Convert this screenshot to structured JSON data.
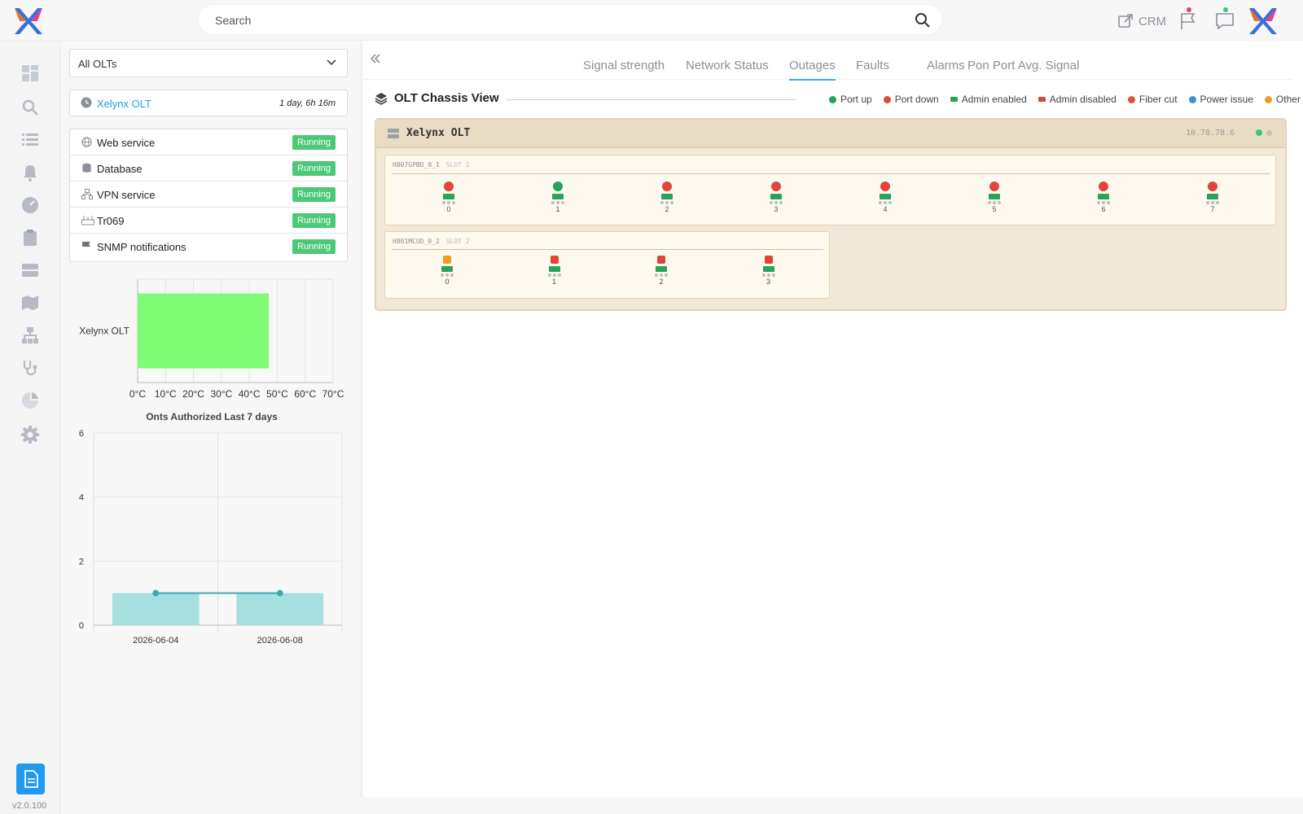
{
  "topbar": {
    "search_placeholder": "Search",
    "crm_label": "CRM"
  },
  "version": "v2.0.100",
  "panel": {
    "olt_select": "All OLTs",
    "olt_card": {
      "name": "Xelynx OLT",
      "uptime": "1 day, 6h 16m"
    },
    "services": [
      {
        "label": "Web service",
        "status": "Running",
        "icon": "globe-icon"
      },
      {
        "label": "Database",
        "status": "Running",
        "icon": "database-icon"
      },
      {
        "label": "VPN service",
        "status": "Running",
        "icon": "network-icon"
      },
      {
        "label": "Tr069",
        "status": "Running",
        "icon": "router-icon"
      },
      {
        "label": "SNMP notifications",
        "status": "Running",
        "icon": "flag-icon"
      }
    ]
  },
  "tabs": [
    "Signal strength",
    "Network Status",
    "Outages",
    "Faults",
    "Alarms",
    "Pon Port Avg. Signal"
  ],
  "active_tab": "Outages",
  "chassis_view": {
    "title": "OLT Chassis View",
    "legend": [
      {
        "label": "Port up",
        "color": "#22a35a",
        "shape": "dot"
      },
      {
        "label": "Port down",
        "color": "#e0453a",
        "shape": "dot"
      },
      {
        "label": "Admin enabled",
        "color": "#27a35a",
        "shape": "bar"
      },
      {
        "label": "Admin disabled",
        "color": "#e0453a",
        "shape": "bar"
      },
      {
        "label": "Fiber cut",
        "color": "#e0533a",
        "shape": "dot"
      },
      {
        "label": "Power issue",
        "color": "#3a8fd8",
        "shape": "dot"
      },
      {
        "label": "Other",
        "color": "#f09a2a",
        "shape": "dot"
      }
    ],
    "olt_name": "Xelynx OLT",
    "olt_ip": "10.78.78.6",
    "cards": [
      {
        "model": "H807GPBD_0_1",
        "slot": "SLOT 1",
        "led_shape": "round",
        "ports": [
          {
            "num": "0",
            "status": "#e0453a"
          },
          {
            "num": "1",
            "status": "#22a35a"
          },
          {
            "num": "2",
            "status": "#e0453a"
          },
          {
            "num": "3",
            "status": "#e0453a"
          },
          {
            "num": "4",
            "status": "#e0453a"
          },
          {
            "num": "5",
            "status": "#e0453a"
          },
          {
            "num": "6",
            "status": "#e0453a"
          },
          {
            "num": "7",
            "status": "#e0453a"
          }
        ]
      },
      {
        "model": "H801MCUD_0_2",
        "slot": "SLOT 2",
        "led_shape": "sq",
        "ports": [
          {
            "num": "0",
            "status": "#f0a020"
          },
          {
            "num": "1",
            "status": "#e0453a"
          },
          {
            "num": "2",
            "status": "#e0453a"
          },
          {
            "num": "3",
            "status": "#e0453a"
          }
        ]
      }
    ]
  },
  "chart_data": [
    {
      "type": "bar",
      "orientation": "horizontal",
      "title": "",
      "categories": [
        "Xelynx OLT"
      ],
      "values": [
        47
      ],
      "unit": "°C",
      "xlim": [
        0,
        70
      ],
      "xticks": [
        "0°C",
        "10°C",
        "20°C",
        "30°C",
        "40°C",
        "50°C",
        "60°C",
        "70°C"
      ],
      "bar_color": "#80fb76",
      "grid": true
    },
    {
      "type": "bar",
      "title": "Onts Authorized Last 7 days",
      "categories": [
        "2026-06-04",
        "2026-06-08"
      ],
      "values": [
        1,
        1
      ],
      "line_values": [
        1,
        1
      ],
      "ylim": [
        0,
        6
      ],
      "yticks": [
        "0",
        "2",
        "4",
        "6"
      ],
      "bar_color": "#a6dfdf",
      "line_color": "#3aaeae",
      "grid": true
    }
  ]
}
